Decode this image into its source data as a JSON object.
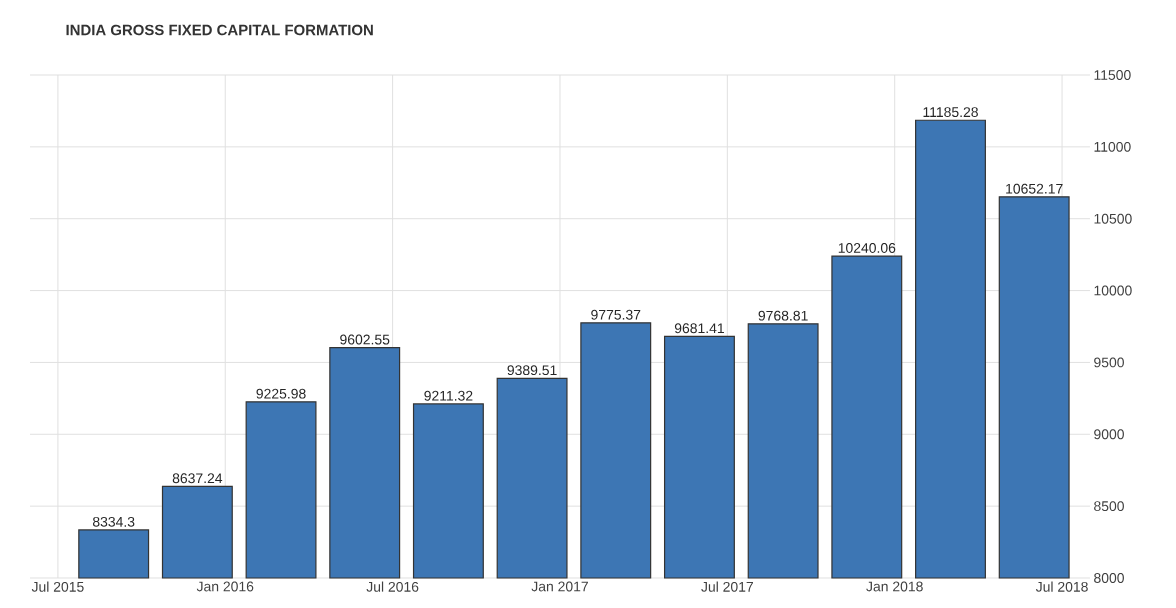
{
  "chart_data": {
    "type": "bar",
    "title": "INDIA GROSS FIXED CAPITAL FORMATION",
    "x": [
      "2015-09",
      "2015-12",
      "2016-03",
      "2016-06",
      "2016-09",
      "2016-12",
      "2017-03",
      "2017-06",
      "2017-09",
      "2017-12",
      "2018-03",
      "2018-06"
    ],
    "values": [
      8334.3,
      8637.24,
      9225.98,
      9602.55,
      9211.32,
      9389.51,
      9775.37,
      9681.41,
      9768.81,
      10240.06,
      11185.28,
      10652.17
    ],
    "value_labels": [
      "8334.3",
      "8637.24",
      "9225.98",
      "9602.55",
      "9211.32",
      "9389.51",
      "9775.37",
      "9681.41",
      "9768.81",
      "10240.06",
      "11185.28",
      "10652.17"
    ],
    "color": "#3d76b4",
    "xlim": [
      "2015-06",
      "2018-08"
    ],
    "xticks": [
      {
        "value": "2015-07",
        "label": "Jul 2015"
      },
      {
        "value": "2016-01",
        "label": "Jan 2016"
      },
      {
        "value": "2016-07",
        "label": "Jul 2016"
      },
      {
        "value": "2017-01",
        "label": "Jan 2017"
      },
      {
        "value": "2017-07",
        "label": "Jul 2017"
      },
      {
        "value": "2018-01",
        "label": "Jan 2018"
      },
      {
        "value": "2018-07",
        "label": "Jul 2018"
      }
    ],
    "ylim": [
      8000,
      11500
    ],
    "yticks": [
      8000,
      8500,
      9000,
      9500,
      10000,
      10500,
      11000,
      11500
    ],
    "grid": true
  }
}
